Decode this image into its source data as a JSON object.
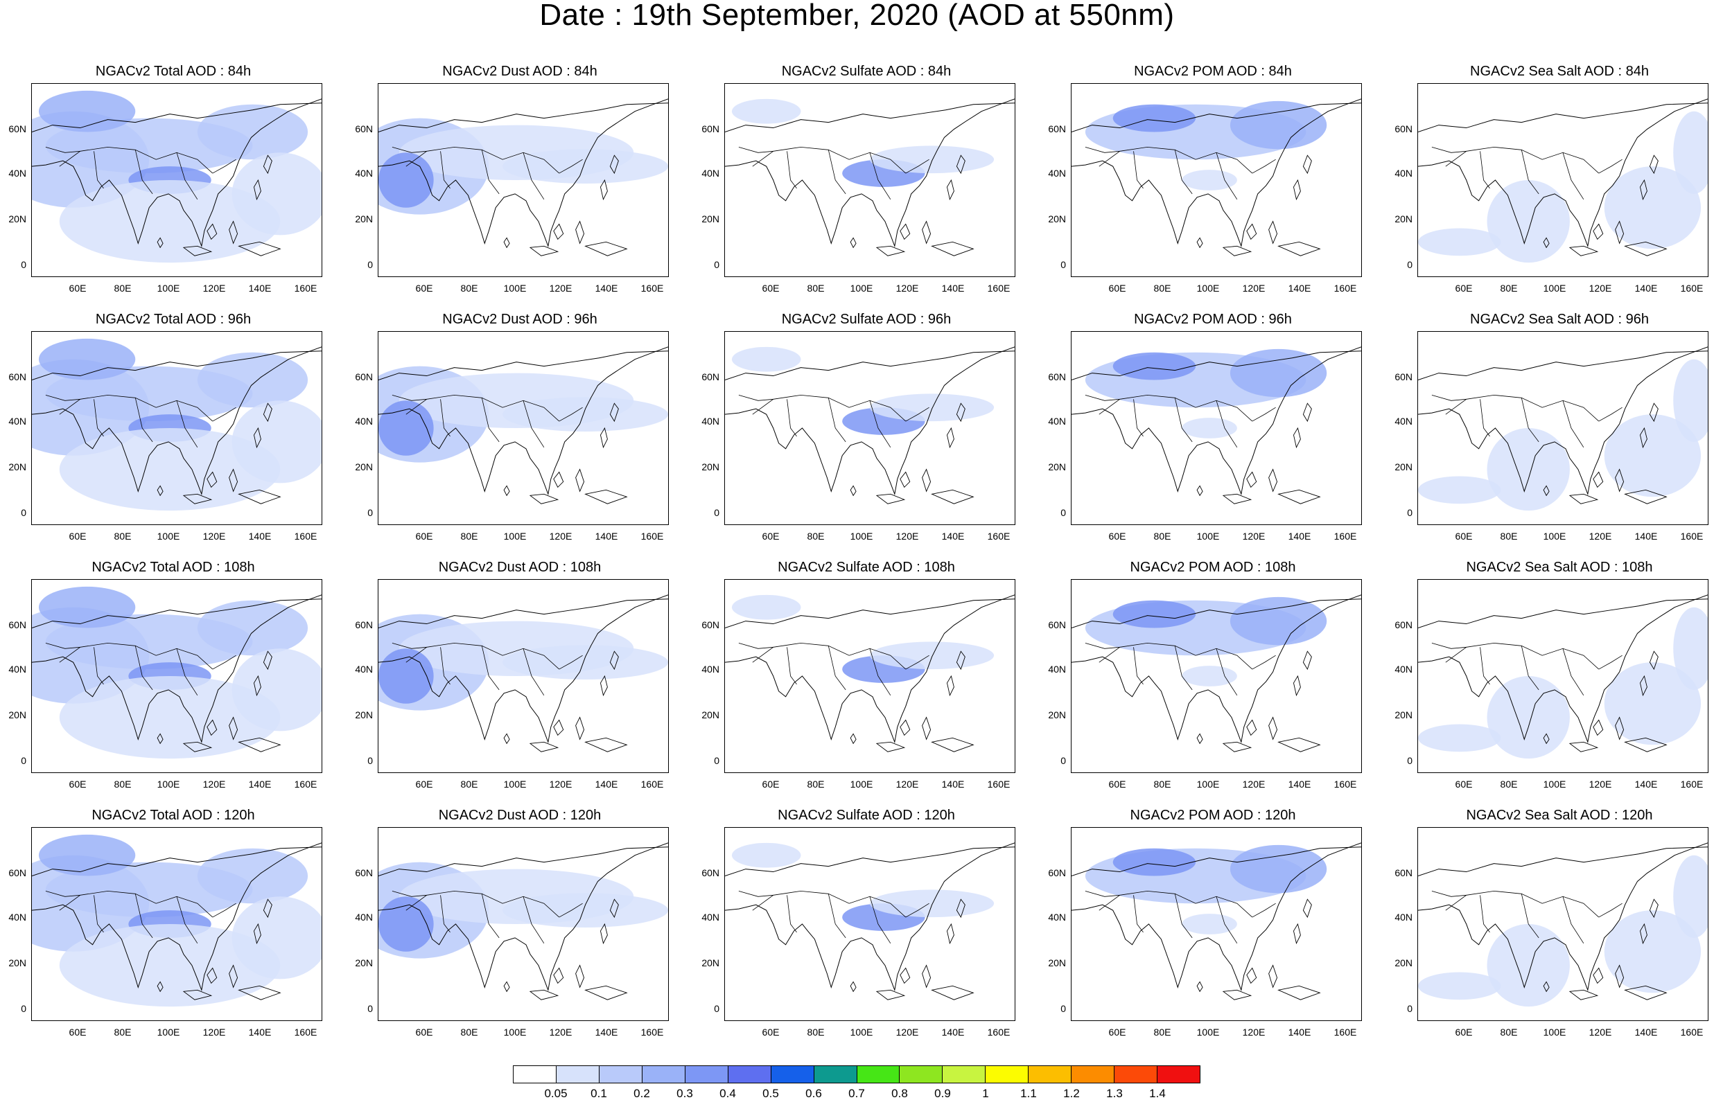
{
  "main_title": "Date : 19th September, 2020 (AOD at 550nm)",
  "x_tick_labels": [
    "60E",
    "80E",
    "100E",
    "120E",
    "140E",
    "160E"
  ],
  "y_tick_labels": [
    "60N",
    "40N",
    "20N",
    "0"
  ],
  "colorbar": {
    "labels": [
      "0.05",
      "0.1",
      "0.2",
      "0.3",
      "0.4",
      "0.5",
      "0.6",
      "0.7",
      "0.8",
      "0.9",
      "1",
      "1.1",
      "1.2",
      "1.3",
      "1.4"
    ],
    "colors": [
      "#ffffff",
      "#d7e2fb",
      "#b9cafa",
      "#9ab2f8",
      "#7d97f5",
      "#5e6ff0",
      "#1560ea",
      "#0d9a8f",
      "#46e616",
      "#8ee620",
      "#c8f440",
      "#fcfc00",
      "#fcbe00",
      "#fc8c00",
      "#fc4a08",
      "#f01010"
    ]
  },
  "panels": [
    {
      "title": "NGACv2 Total AOD : 84h"
    },
    {
      "title": "NGACv2 Dust AOD : 84h"
    },
    {
      "title": "NGACv2 Sulfate AOD : 84h"
    },
    {
      "title": "NGACv2 POM AOD : 84h"
    },
    {
      "title": "NGACv2 Sea Salt AOD : 84h"
    },
    {
      "title": "NGACv2 Total AOD : 96h"
    },
    {
      "title": "NGACv2 Dust AOD : 96h"
    },
    {
      "title": "NGACv2 Sulfate AOD : 96h"
    },
    {
      "title": "NGACv2 POM AOD : 96h"
    },
    {
      "title": "NGACv2 Sea Salt AOD : 96h"
    },
    {
      "title": "NGACv2 Total AOD : 108h"
    },
    {
      "title": "NGACv2 Dust AOD : 108h"
    },
    {
      "title": "NGACv2 Sulfate AOD : 108h"
    },
    {
      "title": "NGACv2 POM AOD : 108h"
    },
    {
      "title": "NGACv2 Sea Salt AOD : 108h"
    },
    {
      "title": "NGACv2 Total AOD : 120h"
    },
    {
      "title": "NGACv2 Dust AOD : 120h"
    },
    {
      "title": "NGACv2 Sulfate AOD : 120h"
    },
    {
      "title": "NGACv2 POM AOD : 120h"
    },
    {
      "title": "NGACv2 Sea Salt  AOD : 120h"
    }
  ]
}
